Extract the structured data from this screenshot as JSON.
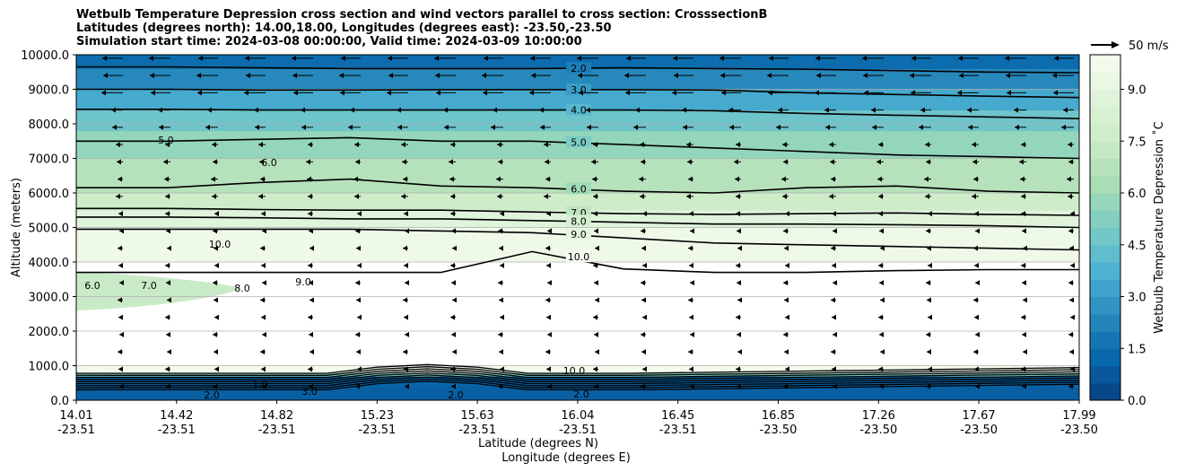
{
  "title": [
    "Wetbulb Temperature Depression cross section and wind vectors parallel to cross section: CrosssectionB",
    "Latitudes (degrees north): 14.00,18.00, Longitudes (degrees east): -23.50,-23.50",
    "Simulation start time: 2024-03-08 00:00:00, Valid time: 2024-03-09 10:00:00"
  ],
  "reference_vector_label": "50 m/s",
  "colors": {
    "colormap": [
      "#084081",
      "#0868ac",
      "#2b8cbe",
      "#4eb3d3",
      "#7bccc4",
      "#a8ddb5",
      "#ccebc5",
      "#e0f3db",
      "#f7fcf0"
    ],
    "contour_line": "#000000",
    "grid": "#b0b0b0"
  },
  "chart_data": {
    "type": "contour",
    "variable": "Wetbulb Temperature Depression",
    "xlabel": "Latitude (degrees N)",
    "xlabel2": "Longitude (degrees E)",
    "ylabel": "Altitude (meters)",
    "ylim": [
      0,
      10000
    ],
    "xlim": [
      14.01,
      17.99
    ],
    "x_ticks": [
      {
        "lat": "14.01",
        "lon": "-23.51"
      },
      {
        "lat": "14.42",
        "lon": "-23.51"
      },
      {
        "lat": "14.82",
        "lon": "-23.51"
      },
      {
        "lat": "15.23",
        "lon": "-23.51"
      },
      {
        "lat": "15.63",
        "lon": "-23.51"
      },
      {
        "lat": "16.04",
        "lon": "-23.51"
      },
      {
        "lat": "16.45",
        "lon": "-23.51"
      },
      {
        "lat": "16.85",
        "lon": "-23.50"
      },
      {
        "lat": "17.26",
        "lon": "-23.50"
      },
      {
        "lat": "17.67",
        "lon": "-23.50"
      },
      {
        "lat": "17.99",
        "lon": "-23.50"
      }
    ],
    "y_ticks": [
      "0.0",
      "1000.0",
      "2000.0",
      "3000.0",
      "4000.0",
      "5000.0",
      "6000.0",
      "7000.0",
      "8000.0",
      "9000.0",
      "10000.0"
    ],
    "grid": true,
    "colorbar": {
      "label": "Wetbulb Temperature Depression ˚C",
      "range": [
        0,
        10
      ],
      "ticks": [
        "0.0",
        "1.5",
        "3.0",
        "4.5",
        "6.0",
        "7.5",
        "9.0"
      ]
    },
    "contour_levels": [
      "2.0",
      "3.0",
      "4.0",
      "5.0",
      "6.0",
      "7.0",
      "8.0",
      "9.0",
      "10.0"
    ],
    "contour_lines": [
      {
        "level": 2.0,
        "label": "2.0",
        "alt": [
          9650,
          9650,
          9620,
          9600,
          9600,
          9600,
          9620,
          9600,
          9580,
          9540,
          9500,
          9480
        ]
      },
      {
        "level": 3.0,
        "label": "3.0",
        "alt": [
          9000,
          9000,
          8980,
          8980,
          8990,
          8990,
          8990,
          8980,
          8900,
          8850,
          8800,
          8760
        ]
      },
      {
        "level": 4.0,
        "label": "4.0",
        "alt": [
          8420,
          8420,
          8400,
          8400,
          8400,
          8400,
          8400,
          8380,
          8300,
          8250,
          8200,
          8150
        ]
      },
      {
        "level": 5.0,
        "label": "5.0",
        "alt": [
          7500,
          7500,
          7550,
          7600,
          7500,
          7500,
          7400,
          7300,
          7200,
          7100,
          7050,
          7000
        ]
      },
      {
        "level": 6.0,
        "label": "6.0",
        "alt": [
          6150,
          6150,
          6300,
          6400,
          6200,
          6150,
          6050,
          6000,
          6150,
          6200,
          6050,
          6000
        ]
      },
      {
        "level": 7.0,
        "label": "7.0",
        "alt": [
          5550,
          5550,
          5520,
          5500,
          5500,
          5450,
          5400,
          5380,
          5400,
          5420,
          5380,
          5350
        ]
      },
      {
        "level": 8.0,
        "label": "8.0",
        "alt": [
          5300,
          5300,
          5280,
          5250,
          5250,
          5200,
          5150,
          5100,
          5100,
          5080,
          5050,
          5000
        ]
      },
      {
        "level": 9.0,
        "label": "9.0",
        "alt": [
          4950,
          4950,
          4950,
          4950,
          4900,
          4850,
          4700,
          4550,
          4500,
          4450,
          4400,
          4350
        ]
      },
      {
        "level": 10.0,
        "label": "10.0",
        "alt": [
          3700,
          3700,
          3700,
          3700,
          3700,
          4300,
          3800,
          3700,
          3700,
          3750,
          3780,
          3780
        ]
      }
    ],
    "inline_labels": [
      "10.0",
      "9.0",
      "8.0",
      "7.0",
      "6.0",
      "5.0",
      "6.0",
      "2.0",
      "1.0",
      "3.0"
    ]
  }
}
